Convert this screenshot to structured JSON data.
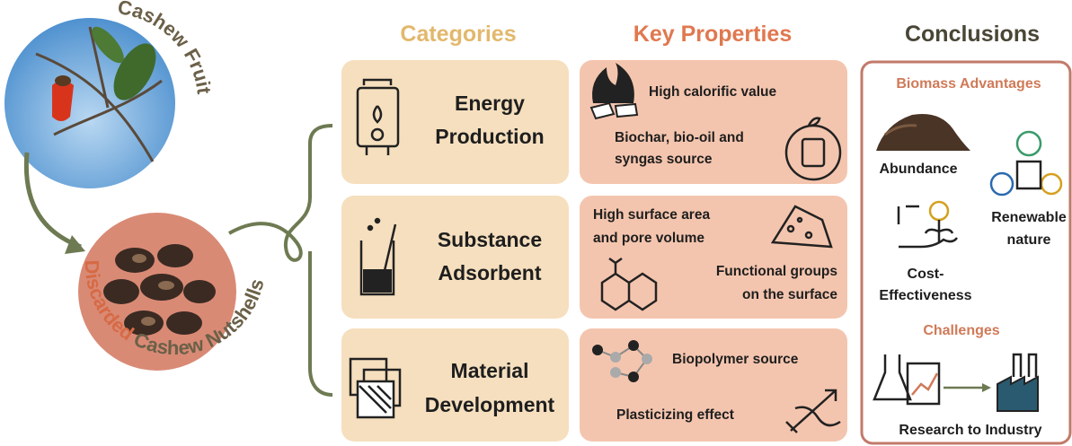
{
  "sources": {
    "fruit": "Cashew Fruit",
    "nutshells": {
      "highlight": "Discarded",
      "rest": "Cashew Nutshells"
    }
  },
  "headers": {
    "categories": "Categories",
    "properties": "Key Properties",
    "conclusions": "Conclusions"
  },
  "categories": [
    {
      "label": [
        "Energy",
        "Production"
      ]
    },
    {
      "label": [
        "Substance",
        "Adsorbent"
      ]
    },
    {
      "label": [
        "Material",
        "Development"
      ]
    }
  ],
  "properties": [
    [
      [
        "High calorific value"
      ],
      [
        "Biochar, bio-oil and",
        "syngas source"
      ]
    ],
    [
      [
        "High surface area",
        "and  pore volume"
      ],
      [
        "Functional groups",
        "on the surface"
      ]
    ],
    [
      [
        "Biopolymer source"
      ],
      [
        "Plasticizing effect"
      ]
    ]
  ],
  "conclusions": {
    "advantages_title": "Biomass Advantages",
    "advantages": [
      [
        "Abundance"
      ],
      [
        "Renewable",
        "nature"
      ],
      [
        "Cost-",
        "Effectiveness"
      ]
    ],
    "challenges_title": "Challenges",
    "challenges": [
      "Research to Industry"
    ]
  }
}
